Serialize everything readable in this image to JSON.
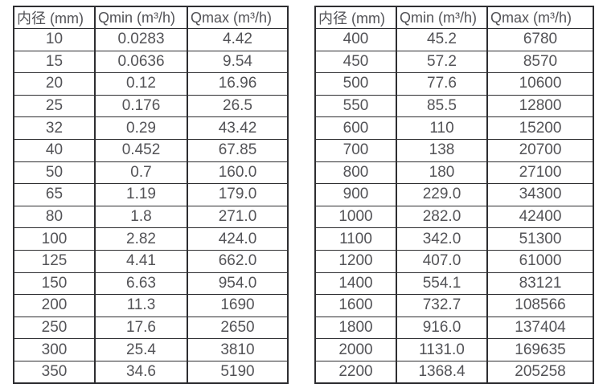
{
  "colors": {
    "text": "#535357",
    "border": "#2e2e31",
    "background": "#ffffff"
  },
  "tables": [
    {
      "id": "left",
      "headers": [
        "内径 (mm)",
        "Qmin (m³/h)",
        "Qmax (m³/h)"
      ],
      "rows": [
        [
          "10",
          "0.0283",
          "4.42"
        ],
        [
          "15",
          "0.0636",
          "9.54"
        ],
        [
          "20",
          "0.12",
          "16.96"
        ],
        [
          "25",
          "0.176",
          "26.5"
        ],
        [
          "32",
          "0.29",
          "43.42"
        ],
        [
          "40",
          "0.452",
          "67.85"
        ],
        [
          "50",
          "0.7",
          "160.0"
        ],
        [
          "65",
          "1.19",
          "179.0"
        ],
        [
          "80",
          "1.8",
          "271.0"
        ],
        [
          "100",
          "2.82",
          "424.0"
        ],
        [
          "125",
          "4.41",
          "662.0"
        ],
        [
          "150",
          "6.63",
          "954.0"
        ],
        [
          "200",
          "11.3",
          "1690"
        ],
        [
          "250",
          "17.6",
          "2650"
        ],
        [
          "300",
          "25.4",
          "3810"
        ],
        [
          "350",
          "34.6",
          "5190"
        ]
      ]
    },
    {
      "id": "right",
      "headers": [
        "内径 (mm)",
        "Qmin (m³/h)",
        "Qmax (m³/h)"
      ],
      "rows": [
        [
          "400",
          "45.2",
          "6780"
        ],
        [
          "450",
          "57.2",
          "8570"
        ],
        [
          "500",
          "77.6",
          "10600"
        ],
        [
          "550",
          "85.5",
          "12800"
        ],
        [
          "600",
          "110",
          "15200"
        ],
        [
          "700",
          "138",
          "20700"
        ],
        [
          "800",
          "180",
          "27100"
        ],
        [
          "900",
          "229.0",
          "34300"
        ],
        [
          "1000",
          "282.0",
          "42400"
        ],
        [
          "1100",
          "342.0",
          "51300"
        ],
        [
          "1200",
          "407.0",
          "61000"
        ],
        [
          "1400",
          "554.1",
          "83121"
        ],
        [
          "1600",
          "732.7",
          "108566"
        ],
        [
          "1800",
          "916.0",
          "137404"
        ],
        [
          "2000",
          "1131.0",
          "169635"
        ],
        [
          "2200",
          "1368.4",
          "205258"
        ]
      ]
    }
  ]
}
